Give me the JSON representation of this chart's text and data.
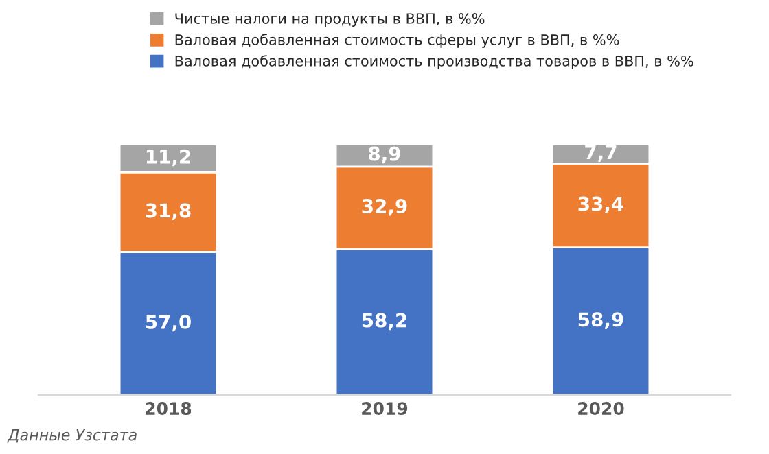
{
  "chart_data": {
    "type": "bar",
    "stacked": true,
    "categories": [
      "2018",
      "2019",
      "2020"
    ],
    "series": [
      {
        "name": "Валовая добавленная стоимость производства товаров в ВВП, в %%",
        "color": "#4472c4",
        "values": [
          57.0,
          58.2,
          58.9
        ],
        "value_labels": [
          "57,0",
          "58,2",
          "58,9"
        ]
      },
      {
        "name": "Валовая добавленная стоимость сферы услуг в ВВП, в %%",
        "color": "#ed7d31",
        "values": [
          31.8,
          32.9,
          33.4
        ],
        "value_labels": [
          "31,8",
          "32,9",
          "33,4"
        ]
      },
      {
        "name": "Чистые налоги на продукты в ВВП, в %%",
        "color": "#a5a5a5",
        "values": [
          11.2,
          8.9,
          7.7
        ],
        "value_labels": [
          "11,2",
          "8,9",
          "7,7"
        ]
      }
    ],
    "legend": "top",
    "annotations": [
      "Данные Узстата"
    ]
  }
}
